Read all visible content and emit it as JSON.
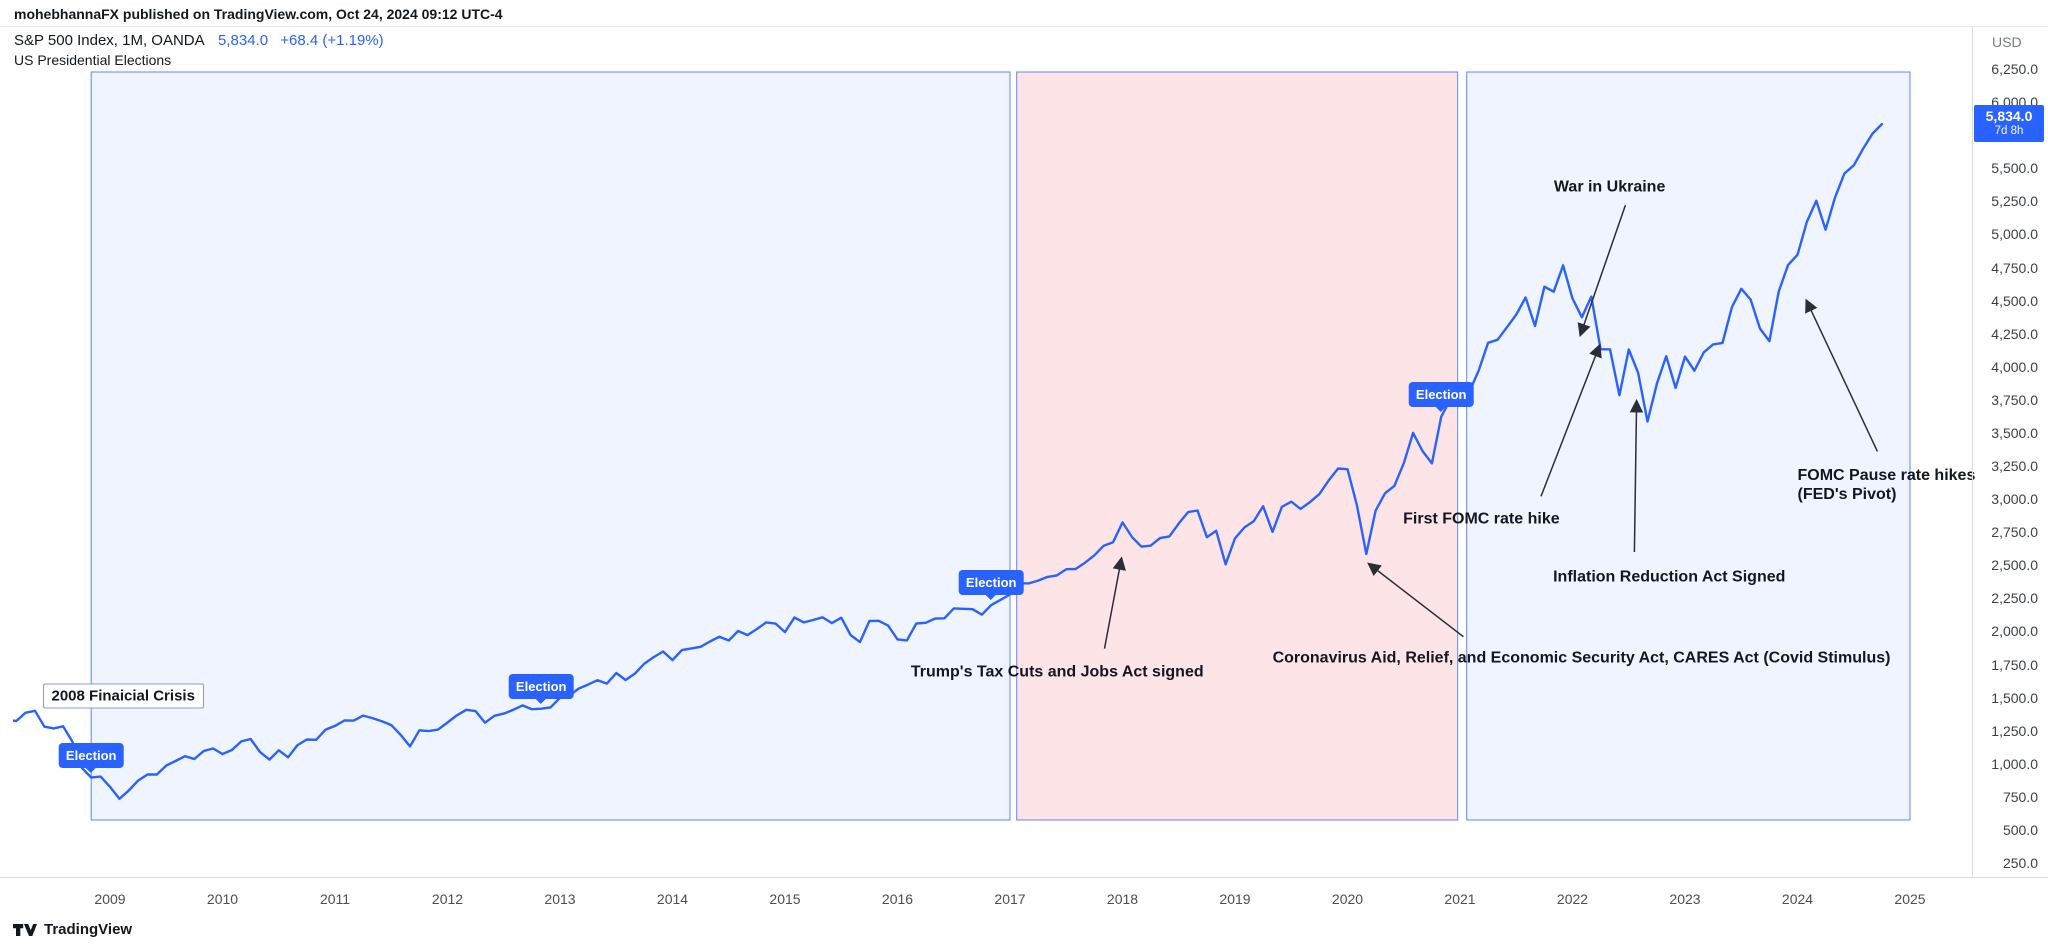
{
  "header": {
    "publisher_line": "mohebhannaFX published on TradingView.com, Oct 24, 2024 09:12 UTC-4",
    "symbol": "S&P 500 Index, 1M, OANDA",
    "price": "5,834.0",
    "change": "+68.4 (+1.19%)",
    "subtitle": "US Presidential Elections"
  },
  "price_scale": {
    "currency": "USD",
    "tick_max": 6250,
    "tick_min": 250,
    "tick_step": 250,
    "badge": {
      "price": "5,834.0",
      "countdown": "7d 8h"
    }
  },
  "x_axis": {
    "years": [
      2009,
      2010,
      2011,
      2012,
      2013,
      2014,
      2015,
      2016,
      2017,
      2018,
      2019,
      2020,
      2021,
      2022,
      2023,
      2024,
      2025
    ]
  },
  "regions": [
    {
      "name": "term-2009-2017",
      "start": 2008.833,
      "end": 2017.0,
      "fill": "rgba(41,98,255,0.07)",
      "border": "rgba(41,98,255,0.75)"
    },
    {
      "name": "term-2017-2021",
      "start": 2017.06,
      "end": 2020.98,
      "fill": "rgba(242,54,69,0.13)",
      "border": "rgba(41,98,255,0.75)"
    },
    {
      "name": "term-2021-2025",
      "start": 2021.06,
      "end": 2025.0,
      "fill": "rgba(41,98,255,0.07)",
      "border": "rgba(41,98,255,0.75)"
    }
  ],
  "election_markers": [
    {
      "label": "Election",
      "year": 2008.833
    },
    {
      "label": "Election",
      "year": 2012.833
    },
    {
      "label": "Election",
      "year": 2016.833
    },
    {
      "label": "Election",
      "year": 2020.833
    }
  ],
  "annotations": [
    {
      "id": "financial-crisis",
      "text": "2008 Finaicial Crisis",
      "style": "boxed",
      "align": "left",
      "anchor_year": 2008.4,
      "anchor_value": 1510
    },
    {
      "id": "tax-cuts",
      "text": "Trump's Tax Cuts and Jobs Act signed",
      "anchor_year": 2017.42,
      "anchor_value": 1690,
      "arrow": {
        "from_year": 2017.84,
        "from_value": 1870,
        "to_year": 2017.99,
        "to_value": 2550
      }
    },
    {
      "id": "cares-act",
      "text": "Coronavirus Aid, Relief, and Economic Security Act, CARES Act (Covid Stimulus)",
      "anchor_year": 2022.08,
      "anchor_value": 1800,
      "arrow": {
        "from_year": 2021.03,
        "from_value": 1960,
        "to_year": 2020.19,
        "to_value": 2510
      }
    },
    {
      "id": "first-fomc-rate-hike",
      "text": "First FOMC rate hike",
      "anchor_year": 2021.19,
      "anchor_value": 2850,
      "arrow": {
        "from_year": 2021.72,
        "from_value": 3020,
        "to_year": 2022.24,
        "to_value": 4160
      }
    },
    {
      "id": "war-in-ukraine",
      "text": "War in Ukraine",
      "anchor_year": 2022.33,
      "anchor_value": 5360,
      "arrow": {
        "from_year": 2022.47,
        "from_value": 5220,
        "to_year": 2022.07,
        "to_value": 4240
      }
    },
    {
      "id": "inflation-reduction-act",
      "text": "Inflation Reduction Act Signed",
      "anchor_year": 2022.86,
      "anchor_value": 2410,
      "arrow": {
        "from_year": 2022.55,
        "from_value": 2600,
        "to_year": 2022.57,
        "to_value": 3740
      }
    },
    {
      "id": "fomc-pause",
      "text": "FOMC Pause rate hikes\n(FED's Pivot)",
      "align": "left",
      "anchor_year": 2024.0,
      "anchor_value": 3110,
      "arrow": {
        "from_year": 2024.71,
        "from_value": 3360,
        "to_year": 2024.08,
        "to_value": 4500
      }
    }
  ],
  "footer": {
    "brand": "TradingView"
  },
  "chart_data": {
    "type": "line",
    "title": "S&P 500 Index, 1M, OANDA",
    "subtitle": "US Presidential Elections",
    "xlabel": "",
    "ylabel": "USD",
    "ylim": [
      250,
      6250
    ],
    "xlim": [
      2008.1,
      2025.55
    ],
    "grid": false,
    "legend": false,
    "line_color": "#2962ff",
    "x_start_year": 2008.0,
    "x_step_months": 1,
    "x_end_label": "Oct 2024",
    "values": [
      1378,
      1331,
      1323,
      1386,
      1400,
      1280,
      1267,
      1283,
      1165,
      969,
      896,
      903,
      826,
      735,
      798,
      873,
      919,
      919,
      987,
      1021,
      1057,
      1036,
      1096,
      1115,
      1074,
      1104,
      1169,
      1187,
      1089,
      1031,
      1102,
      1049,
      1141,
      1183,
      1181,
      1258,
      1286,
      1327,
      1326,
      1364,
      1345,
      1321,
      1292,
      1219,
      1131,
      1253,
      1247,
      1258,
      1312,
      1366,
      1408,
      1398,
      1310,
      1362,
      1379,
      1407,
      1441,
      1412,
      1416,
      1426,
      1498,
      1515,
      1569,
      1598,
      1631,
      1606,
      1686,
      1633,
      1682,
      1757,
      1806,
      1848,
      1783,
      1859,
      1872,
      1884,
      1924,
      1960,
      1931,
      2003,
      1972,
      2018,
      2068,
      2059,
      1995,
      2105,
      2068,
      2086,
      2107,
      2063,
      2104,
      1972,
      1920,
      2079,
      2080,
      2044,
      1940,
      1932,
      2060,
      2065,
      2097,
      2099,
      2174,
      2171,
      2168,
      2126,
      2199,
      2239,
      2279,
      2364,
      2363,
      2384,
      2412,
      2423,
      2470,
      2472,
      2519,
      2575,
      2648,
      2674,
      2824,
      2714,
      2641,
      2648,
      2705,
      2718,
      2816,
      2902,
      2914,
      2712,
      2760,
      2507,
      2704,
      2785,
      2834,
      2946,
      2752,
      2942,
      2980,
      2926,
      2977,
      3038,
      3141,
      3231,
      3226,
      2954,
      2585,
      2912,
      3044,
      3100,
      3271,
      3500,
      3363,
      3270,
      3622,
      3756,
      3714,
      3811,
      3973,
      4181,
      4204,
      4298,
      4395,
      4523,
      4308,
      4605,
      4567,
      4766,
      4516,
      4374,
      4530,
      4132,
      4132,
      3785,
      4130,
      3955,
      3586,
      3872,
      4080,
      3840,
      4077,
      3970,
      4109,
      4169,
      4180,
      4450,
      4589,
      4508,
      4288,
      4194,
      4568,
      4770,
      4846,
      5096,
      5254,
      5036,
      5278,
      5460,
      5522,
      5648,
      5762,
      5834
    ]
  }
}
